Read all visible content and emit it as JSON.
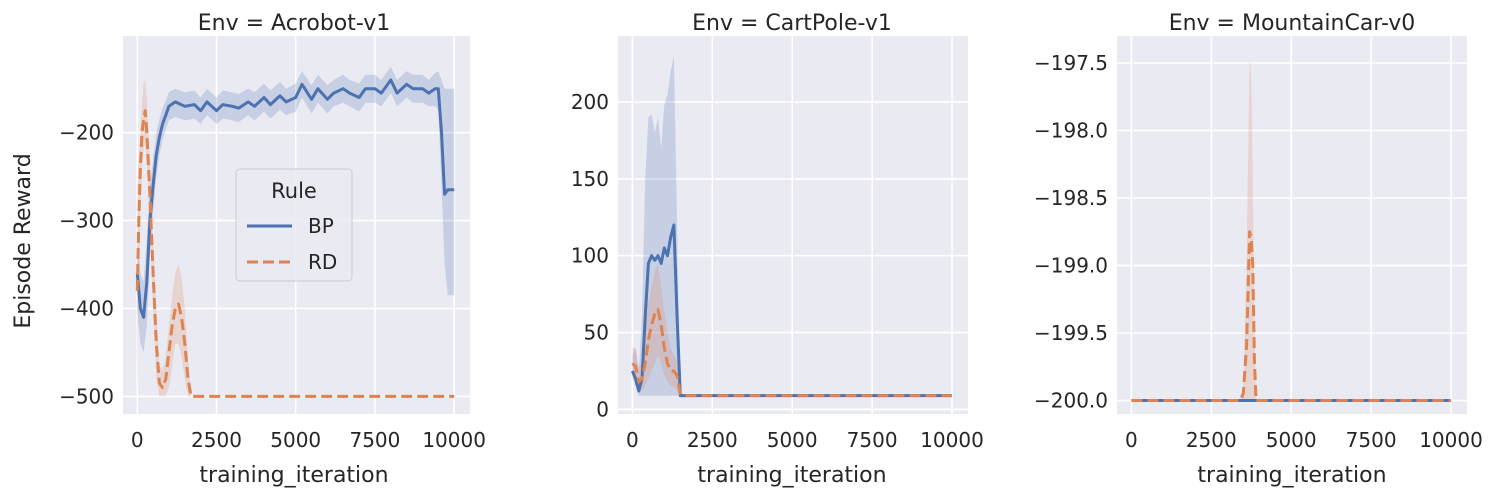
{
  "chart_data": [
    {
      "type": "line",
      "title": "Env = Acrobot-v1",
      "xlabel": "training_iteration",
      "ylabel": "Episode Reward",
      "xlim": [
        -450,
        10500
      ],
      "ylim": [
        -520,
        -90
      ],
      "xticks": [
        0,
        2500,
        5000,
        7500,
        10000
      ],
      "xtick_labels": [
        "0",
        "2500",
        "5000",
        "7500",
        "10000"
      ],
      "yticks": [
        -500,
        -400,
        -300,
        -200
      ],
      "ytick_labels": [
        "−500",
        "−400",
        "−300",
        "−200"
      ],
      "grid": true,
      "legend": {
        "title": "Rule",
        "placement": "center"
      },
      "series": [
        {
          "name": "BP",
          "color": "#4c72b0",
          "dash": "solid",
          "x": [
            0,
            100,
            200,
            300,
            400,
            500,
            600,
            700,
            800,
            900,
            1000,
            1200,
            1500,
            1800,
            2000,
            2200,
            2500,
            2700,
            3000,
            3200,
            3500,
            3700,
            4000,
            4200,
            4500,
            4700,
            5000,
            5200,
            5500,
            5700,
            6000,
            6200,
            6500,
            6700,
            7000,
            7200,
            7500,
            7700,
            8000,
            8200,
            8500,
            8700,
            9000,
            9200,
            9400,
            9500,
            9600,
            9700,
            9800,
            10000
          ],
          "y": [
            -360,
            -400,
            -410,
            -370,
            -300,
            -260,
            -225,
            -205,
            -190,
            -180,
            -170,
            -165,
            -170,
            -168,
            -175,
            -165,
            -175,
            -168,
            -170,
            -172,
            -165,
            -170,
            -160,
            -168,
            -158,
            -165,
            -160,
            -145,
            -162,
            -150,
            -162,
            -155,
            -150,
            -155,
            -160,
            -150,
            -150,
            -155,
            -140,
            -155,
            -145,
            -150,
            -150,
            -155,
            -150,
            -150,
            -200,
            -270,
            -265,
            -265
          ],
          "band_lower": [
            -400,
            -440,
            -450,
            -420,
            -340,
            -290,
            -250,
            -225,
            -208,
            -196,
            -186,
            -182,
            -186,
            -184,
            -190,
            -180,
            -190,
            -184,
            -186,
            -188,
            -180,
            -186,
            -176,
            -184,
            -174,
            -180,
            -176,
            -160,
            -178,
            -166,
            -178,
            -170,
            -166,
            -170,
            -176,
            -166,
            -166,
            -170,
            -155,
            -170,
            -160,
            -166,
            -166,
            -170,
            -170,
            -175,
            -260,
            -350,
            -385,
            -385
          ],
          "band_upper": [
            -320,
            -360,
            -370,
            -320,
            -260,
            -230,
            -200,
            -185,
            -172,
            -164,
            -154,
            -150,
            -154,
            -152,
            -160,
            -150,
            -160,
            -152,
            -154,
            -156,
            -150,
            -154,
            -144,
            -152,
            -142,
            -150,
            -144,
            -130,
            -146,
            -134,
            -146,
            -140,
            -134,
            -140,
            -144,
            -134,
            -134,
            -140,
            -125,
            -140,
            -130,
            -134,
            -134,
            -140,
            -132,
            -130,
            -140,
            -150,
            -150,
            -150
          ]
        },
        {
          "name": "RD",
          "color": "#dd8452",
          "dash": "dashed",
          "x": [
            0,
            50,
            100,
            150,
            200,
            250,
            300,
            400,
            500,
            600,
            700,
            800,
            900,
            1000,
            1100,
            1200,
            1300,
            1400,
            1500,
            1600,
            1700,
            1800,
            2000,
            3000,
            4000,
            5000,
            6000,
            7000,
            8000,
            9000,
            10000
          ],
          "y": [
            -380,
            -300,
            -240,
            -200,
            -185,
            -175,
            -200,
            -270,
            -360,
            -440,
            -485,
            -490,
            -480,
            -450,
            -420,
            -400,
            -395,
            -410,
            -440,
            -480,
            -500,
            -500,
            -500,
            -500,
            -500,
            -500,
            -500,
            -500,
            -500,
            -500,
            -500
          ],
          "band_lower": [
            -500,
            -380,
            -290,
            -240,
            -220,
            -210,
            -235,
            -310,
            -400,
            -480,
            -500,
            -500,
            -500,
            -490,
            -465,
            -440,
            -440,
            -455,
            -480,
            -500,
            -500,
            -500,
            -500,
            -500,
            -500,
            -500,
            -500,
            -500,
            -500,
            -500,
            -500
          ],
          "band_upper": [
            -260,
            -230,
            -200,
            -165,
            -145,
            -140,
            -160,
            -230,
            -320,
            -400,
            -465,
            -470,
            -455,
            -420,
            -385,
            -360,
            -350,
            -365,
            -400,
            -455,
            -500,
            -500,
            -500,
            -500,
            -500,
            -500,
            -500,
            -500,
            -500,
            -500,
            -500
          ]
        }
      ]
    },
    {
      "type": "line",
      "title": "Env = CartPole-v1",
      "xlabel": "training_iteration",
      "ylabel": "",
      "xlim": [
        -450,
        10500
      ],
      "ylim": [
        -3,
        243
      ],
      "xticks": [
        0,
        2500,
        5000,
        7500,
        10000
      ],
      "xtick_labels": [
        "0",
        "2500",
        "5000",
        "7500",
        "10000"
      ],
      "yticks": [
        0,
        50,
        100,
        150,
        200
      ],
      "ytick_labels": [
        "0",
        "50",
        "100",
        "150",
        "200"
      ],
      "grid": true,
      "series": [
        {
          "name": "BP",
          "color": "#4c72b0",
          "dash": "solid",
          "x": [
            0,
            100,
            200,
            300,
            400,
            500,
            600,
            700,
            800,
            900,
            1000,
            1100,
            1200,
            1300,
            1400,
            1500,
            1600,
            2000,
            3000,
            4000,
            5000,
            6000,
            7000,
            8000,
            9000,
            10000
          ],
          "y": [
            25,
            20,
            12,
            20,
            60,
            95,
            100,
            97,
            100,
            95,
            105,
            100,
            112,
            120,
            60,
            9,
            9,
            9,
            9,
            9,
            9,
            9,
            9,
            9,
            9,
            9
          ],
          "band_lower": [
            20,
            15,
            9,
            9,
            9,
            9,
            9,
            9,
            9,
            9,
            9,
            9,
            9,
            9,
            9,
            9,
            9,
            9,
            9,
            9,
            9,
            9,
            9,
            9,
            9,
            9
          ],
          "band_upper": [
            35,
            40,
            25,
            60,
            150,
            190,
            192,
            180,
            190,
            170,
            198,
            205,
            220,
            230,
            120,
            9,
            9,
            9,
            9,
            9,
            9,
            9,
            9,
            9,
            9,
            9
          ]
        },
        {
          "name": "RD",
          "color": "#dd8452",
          "dash": "dashed",
          "x": [
            0,
            100,
            200,
            300,
            400,
            500,
            600,
            700,
            800,
            900,
            1000,
            1100,
            1200,
            1300,
            1400,
            1500,
            1600,
            2000,
            3000,
            4000,
            5000,
            6000,
            7000,
            8000,
            9000,
            10000
          ],
          "y": [
            30,
            28,
            18,
            20,
            30,
            45,
            55,
            62,
            65,
            55,
            40,
            30,
            25,
            25,
            22,
            10,
            9,
            9,
            9,
            9,
            9,
            9,
            9,
            9,
            9,
            9
          ],
          "band_lower": [
            22,
            20,
            12,
            12,
            15,
            20,
            25,
            30,
            35,
            30,
            22,
            18,
            15,
            15,
            12,
            9,
            9,
            9,
            9,
            9,
            9,
            9,
            9,
            9,
            9,
            9
          ],
          "band_upper": [
            40,
            40,
            28,
            30,
            50,
            70,
            80,
            90,
            95,
            80,
            65,
            50,
            40,
            35,
            32,
            12,
            9,
            9,
            9,
            9,
            9,
            9,
            9,
            9,
            9,
            9
          ]
        }
      ]
    },
    {
      "type": "line",
      "title": "Env = MountainCar-v0",
      "xlabel": "training_iteration",
      "ylabel": "",
      "xlim": [
        -450,
        10500
      ],
      "ylim": [
        -200.1,
        -197.3
      ],
      "xticks": [
        0,
        2500,
        5000,
        7500,
        10000
      ],
      "xtick_labels": [
        "0",
        "2500",
        "5000",
        "7500",
        "10000"
      ],
      "yticks": [
        -200.0,
        -199.5,
        -199.0,
        -198.5,
        -198.0,
        -197.5
      ],
      "ytick_labels": [
        "−200.0",
        "−199.5",
        "−199.0",
        "−198.5",
        "−198.0",
        "−197.5"
      ],
      "grid": true,
      "series": [
        {
          "name": "BP",
          "color": "#4c72b0",
          "dash": "solid",
          "x": [
            0,
            10000
          ],
          "y": [
            -200,
            -200
          ],
          "band_lower": [
            -200,
            -200
          ],
          "band_upper": [
            -200,
            -200
          ]
        },
        {
          "name": "RD",
          "color": "#dd8452",
          "dash": "dashed",
          "x": [
            0,
            3400,
            3500,
            3600,
            3650,
            3700,
            3750,
            3800,
            3850,
            3900,
            4000,
            10000
          ],
          "y": [
            -200,
            -200,
            -199.95,
            -199.6,
            -199.2,
            -198.75,
            -198.8,
            -199.0,
            -199.7,
            -200,
            -200,
            -200
          ],
          "band_lower": [
            -200,
            -200,
            -200,
            -200,
            -200,
            -200,
            -200,
            -200,
            -200,
            -200,
            -200,
            -200
          ],
          "band_upper": [
            -200,
            -200,
            -199.9,
            -199.0,
            -198.2,
            -197.45,
            -197.6,
            -198.4,
            -199.4,
            -200,
            -200,
            -200
          ]
        }
      ]
    }
  ]
}
